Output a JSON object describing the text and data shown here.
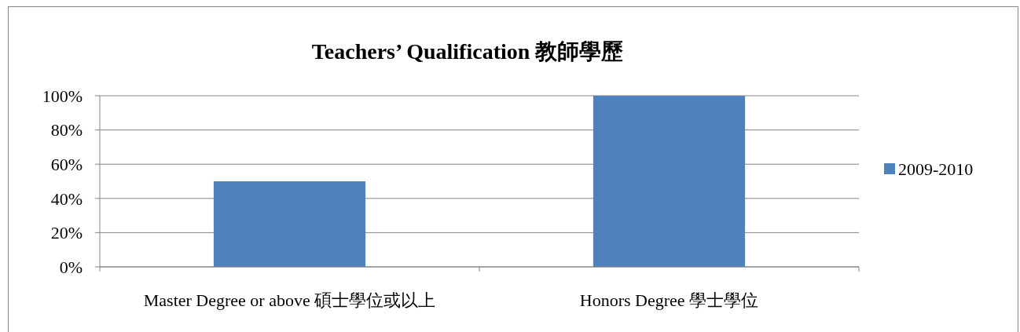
{
  "chart_data": {
    "type": "bar",
    "title": "Teachers’ Qualification 教師學歷",
    "categories": [
      "Master Degree or above 碩士學位或以上",
      "Honors Degree 學士學位"
    ],
    "series": [
      {
        "name": "2009-2010",
        "color": "#4f81bd",
        "values": [
          50,
          100
        ]
      }
    ],
    "ylim": [
      0,
      100
    ],
    "yticks": [
      {
        "value": 0,
        "label": "0%"
      },
      {
        "value": 20,
        "label": "20%"
      },
      {
        "value": 40,
        "label": "40%"
      },
      {
        "value": 60,
        "label": "60%"
      },
      {
        "value": 80,
        "label": "80%"
      },
      {
        "value": 100,
        "label": "100%"
      }
    ],
    "grid": "y",
    "legend": "right"
  }
}
